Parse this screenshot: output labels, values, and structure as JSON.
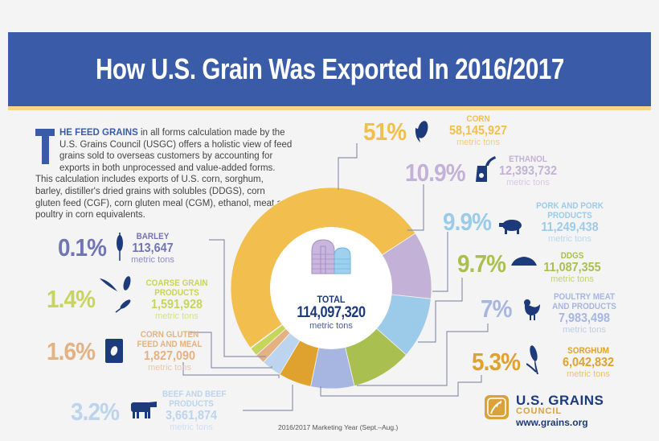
{
  "header": {
    "title": "How U.S. Grain Was Exported In 2016/2017"
  },
  "intro": {
    "dropcap": "T",
    "lead": "HE FEED GRAINS",
    "text": " in all forms calculation made by the U.S. Grains Council (USGC) offers a holistic view of feed grains sold to overseas customers by accounting for exports in both unprocessed and value-added forms. This calculation includes exports of U.S. corn, sorghum, barley, distiller's dried grains with solubles (DDGS), corn gluten feed (CGF), corn gluten meal (CGM), ethanol, meat and poultry in corn equivalents."
  },
  "total": {
    "label": "TOTAL",
    "value": "114,097,320",
    "unit": "metric tons"
  },
  "items": [
    {
      "key": "corn",
      "name": "CORN",
      "pct": "51%",
      "value": "58,145,927",
      "unit": "metric tons",
      "color": "#f2bf4e",
      "icon": "corn-icon"
    },
    {
      "key": "ethanol",
      "name": "ETHANOL",
      "pct": "10.9%",
      "value": "12,393,732",
      "unit": "metric tons",
      "color": "#c3b1d8",
      "icon": "fuel-pump-icon"
    },
    {
      "key": "pork",
      "name": "PORK AND PORK PRODUCTS",
      "name1": "PORK AND PORK",
      "name2": "PRODUCTS",
      "pct": "9.9%",
      "value": "11,249,438",
      "unit": "metric tons",
      "color": "#9ccbe9",
      "icon": "pig-icon"
    },
    {
      "key": "ddgs",
      "name": "DDGS",
      "pct": "9.7%",
      "value": "11,087,355",
      "unit": "metric tons",
      "color": "#a9bf4f",
      "icon": "grain-pile-icon"
    },
    {
      "key": "poultry",
      "name": "POULTRY MEAT AND PRODUCTS",
      "name1": "POULTRY MEAT",
      "name2": "AND PRODUCTS",
      "pct": "7%",
      "value": "7,983,498",
      "unit": "metric tons",
      "color": "#a6b6e0",
      "icon": "chicken-icon"
    },
    {
      "key": "sorghum",
      "name": "SORGHUM",
      "pct": "5.3%",
      "value": "6,042,832",
      "unit": "metric tons",
      "color": "#e0a22e",
      "icon": "sorghum-icon"
    },
    {
      "key": "beef",
      "name": "BEEF AND BEEF PRODUCTS",
      "name1": "BEEF AND BEEF",
      "name2": "PRODUCTS",
      "pct": "3.2%",
      "value": "3,661,874",
      "unit": "metric tons",
      "color": "#bcd4ee",
      "icon": "cow-icon"
    },
    {
      "key": "cgf",
      "name": "CORN GLUTEN FEED AND MEAL",
      "name1": "CORN GLUTEN",
      "name2": "FEED AND MEAL",
      "pct": "1.6%",
      "value": "1,827,090",
      "unit": "metric tons",
      "color": "#e4b282",
      "icon": "feed-bag-icon"
    },
    {
      "key": "coarse",
      "name": "COARSE GRAIN PRODUCTS",
      "name1": "COARSE GRAIN",
      "name2": "PRODUCTS",
      "pct": "1.4%",
      "value": "1,591,928",
      "unit": "metric tons",
      "color": "#c7d55a",
      "icon": "mixed-grains-icon"
    },
    {
      "key": "barley",
      "name": "BARLEY",
      "pct": "0.1%",
      "value": "113,647",
      "unit": "metric tons",
      "color": "#6f75b5",
      "icon": "barley-icon"
    }
  ],
  "footnote": "2016/2017 Marketing Year (Sept.–Aug.)",
  "logo": {
    "name": "U.S. GRAINS",
    "sub": "COUNCIL",
    "url": "www.grains.org"
  },
  "colors": {
    "banner": "#3a5ca8",
    "banner_stripe": "#f6d48c",
    "icon_navy": "#1d3a7a",
    "connector": "#8c93ad",
    "background": "#f4f4f4"
  },
  "chart_data": {
    "type": "pie",
    "variant": "donut",
    "title": "How U.S. Grain Was Exported In 2016/2017",
    "subtitle": "2016/2017 Marketing Year (Sept.–Aug.)",
    "center_label": "TOTAL 114,097,320 metric tons",
    "total_metric_tons": 114097320,
    "categories": [
      "Corn",
      "Ethanol",
      "Pork and Pork Products",
      "DDGS",
      "Poultry Meat and Products",
      "Sorghum",
      "Beef and Beef Products",
      "Corn Gluten Feed and Meal",
      "Coarse Grain Products",
      "Barley"
    ],
    "values": [
      58145927,
      12393732,
      11249438,
      11087355,
      7983498,
      6042832,
      3661874,
      1827090,
      1591928,
      113647
    ],
    "percentages": [
      51,
      10.9,
      9.9,
      9.7,
      7,
      5.3,
      3.2,
      1.6,
      1.4,
      0.1
    ],
    "colors": [
      "#f2bf4e",
      "#c3b1d8",
      "#9ccbe9",
      "#a9bf4f",
      "#a6b6e0",
      "#e0a22e",
      "#bcd4ee",
      "#e4b282",
      "#c7d55a",
      "#6f75b5"
    ],
    "unit": "metric tons",
    "legend_position": "callouts around donut"
  }
}
